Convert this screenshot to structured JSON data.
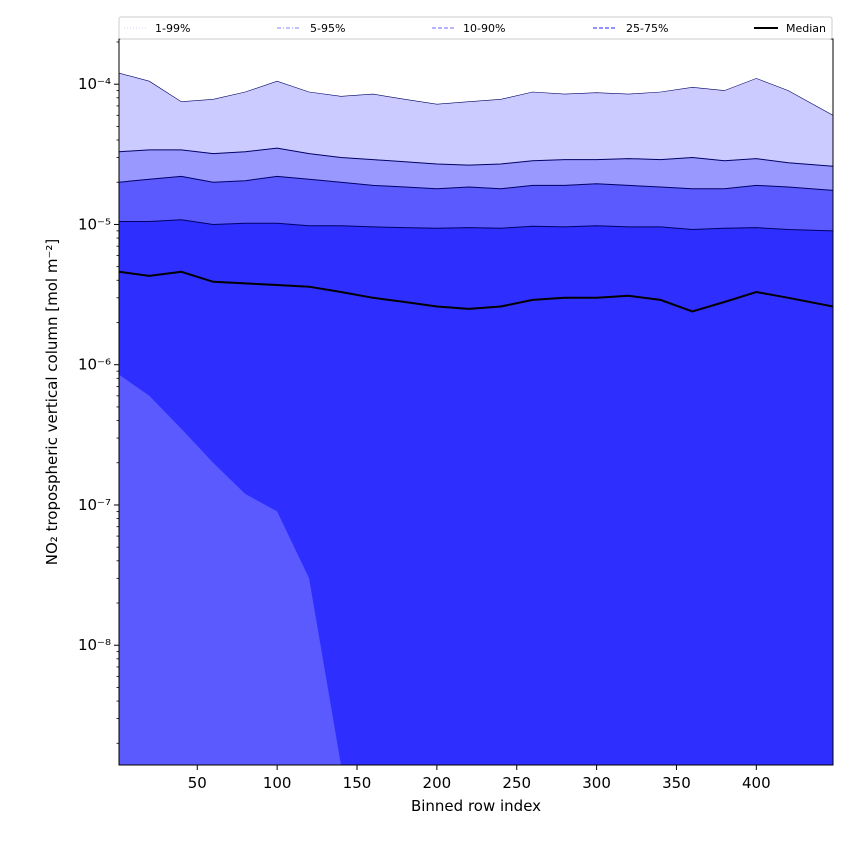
{
  "chart_data": {
    "type": "area",
    "title": "",
    "xlabel": "Binned row index",
    "ylabel": "NO₂ tropospheric vertical column [mol m⁻²]",
    "x_range": [
      1,
      448
    ],
    "x_scale": "linear",
    "y_scale": "log",
    "y_range": [
      1.4e-09,
      0.00021
    ],
    "grid": false,
    "legend_position": "top",
    "x_ticks": [
      50,
      100,
      150,
      200,
      250,
      300,
      350,
      400
    ],
    "x_tick_labels": [
      "50",
      "100",
      "150",
      "200",
      "250",
      "300",
      "350",
      "400"
    ],
    "y_ticks": [
      1e-08,
      1e-07,
      1e-06,
      1e-05,
      0.0001
    ],
    "y_tick_labels": [
      "10⁻⁸",
      "10⁻⁷",
      "10⁻⁶",
      "10⁻⁵",
      "10⁻⁴"
    ],
    "x": [
      1,
      20,
      40,
      60,
      80,
      100,
      120,
      140,
      160,
      180,
      200,
      220,
      240,
      260,
      280,
      300,
      320,
      340,
      360,
      380,
      400,
      420,
      448
    ],
    "series": [
      {
        "name": "Median",
        "values": [
          4.6e-06,
          4.3e-06,
          4.6e-06,
          3.9e-06,
          3.8e-06,
          3.7e-06,
          3.6e-06,
          3.3e-06,
          3e-06,
          2.8e-06,
          2.6e-06,
          2.5e-06,
          2.6e-06,
          2.9e-06,
          3e-06,
          3e-06,
          3.1e-06,
          2.9e-06,
          2.4e-06,
          2.8e-06,
          3.3e-06,
          3e-06,
          2.6e-06
        ]
      },
      {
        "name": "25-75%",
        "lower": [
          8.5e-07,
          6e-07,
          3.5e-07,
          2e-07,
          1.2e-07,
          9e-08,
          3e-08,
          1.4e-09,
          1.4e-09,
          1.4e-09,
          1.4e-09,
          1.4e-09,
          1.4e-09,
          1.4e-09,
          1.4e-09,
          1.4e-09,
          1.4e-09,
          1.4e-09,
          1.4e-09,
          1.4e-09,
          1.4e-09,
          1.4e-09,
          1.4e-09
        ],
        "upper": [
          1.05e-05,
          1.05e-05,
          1.08e-05,
          1e-05,
          1.02e-05,
          1.02e-05,
          9.8e-06,
          9.8e-06,
          9.6e-06,
          9.5e-06,
          9.4e-06,
          9.5e-06,
          9.4e-06,
          9.7e-06,
          9.6e-06,
          9.8e-06,
          9.6e-06,
          9.6e-06,
          9.2e-06,
          9.4e-06,
          9.5e-06,
          9.2e-06,
          9e-06
        ]
      },
      {
        "name": "10-90%",
        "lower": [
          1.4e-09,
          1.4e-09,
          1.4e-09,
          1.4e-09,
          1.4e-09,
          1.4e-09,
          1.4e-09,
          1.4e-09,
          1.4e-09,
          1.4e-09,
          1.4e-09,
          1.4e-09,
          1.4e-09,
          1.4e-09,
          1.4e-09,
          1.4e-09,
          1.4e-09,
          1.4e-09,
          1.4e-09,
          1.4e-09,
          1.4e-09,
          1.4e-09,
          1.4e-09
        ],
        "upper": [
          2e-05,
          2.1e-05,
          2.2e-05,
          2e-05,
          2.05e-05,
          2.2e-05,
          2.1e-05,
          2e-05,
          1.9e-05,
          1.85e-05,
          1.8e-05,
          1.85e-05,
          1.8e-05,
          1.9e-05,
          1.9e-05,
          1.95e-05,
          1.9e-05,
          1.85e-05,
          1.8e-05,
          1.8e-05,
          1.9e-05,
          1.85e-05,
          1.75e-05
        ]
      },
      {
        "name": "5-95%",
        "lower": [
          1.4e-09,
          1.4e-09,
          1.4e-09,
          1.4e-09,
          1.4e-09,
          1.4e-09,
          1.4e-09,
          1.4e-09,
          1.4e-09,
          1.4e-09,
          1.4e-09,
          1.4e-09,
          1.4e-09,
          1.4e-09,
          1.4e-09,
          1.4e-09,
          1.4e-09,
          1.4e-09,
          1.4e-09,
          1.4e-09,
          1.4e-09,
          1.4e-09,
          1.4e-09
        ],
        "upper": [
          3.3e-05,
          3.4e-05,
          3.4e-05,
          3.2e-05,
          3.3e-05,
          3.5e-05,
          3.2e-05,
          3e-05,
          2.9e-05,
          2.8e-05,
          2.7e-05,
          2.65e-05,
          2.7e-05,
          2.85e-05,
          2.9e-05,
          2.9e-05,
          2.95e-05,
          2.9e-05,
          3e-05,
          2.85e-05,
          2.95e-05,
          2.75e-05,
          2.6e-05
        ]
      },
      {
        "name": "1-99%",
        "lower": [
          1.4e-09,
          1.4e-09,
          1.4e-09,
          1.4e-09,
          1.4e-09,
          1.4e-09,
          1.4e-09,
          1.4e-09,
          1.4e-09,
          1.4e-09,
          1.4e-09,
          1.4e-09,
          1.4e-09,
          1.4e-09,
          1.4e-09,
          1.4e-09,
          1.4e-09,
          1.4e-09,
          1.4e-09,
          1.4e-09,
          1.4e-09,
          1.4e-09,
          1.4e-09
        ],
        "upper": [
          0.00012,
          0.000105,
          7.5e-05,
          7.8e-05,
          8.8e-05,
          0.000105,
          8.8e-05,
          8.2e-05,
          8.5e-05,
          7.8e-05,
          7.2e-05,
          7.5e-05,
          7.8e-05,
          8.8e-05,
          8.5e-05,
          8.7e-05,
          8.5e-05,
          8.8e-05,
          9.5e-05,
          9e-05,
          0.00011,
          9e-05,
          6e-05
        ]
      }
    ],
    "legend": [
      {
        "name": "1-99%",
        "style": "dotted",
        "color": "#d9d9ff"
      },
      {
        "name": "5-95%",
        "style": "dashdot",
        "color": "#9c9cff"
      },
      {
        "name": "10-90%",
        "style": "dashed",
        "color": "#8a8aff"
      },
      {
        "name": "25-75%",
        "style": "dashed",
        "color": "#5252ff"
      },
      {
        "name": "Median",
        "style": "solid",
        "color": "#000000"
      }
    ],
    "colors": {
      "band_1_99": "#cbcbff",
      "band_5_95": "#9898ff",
      "band_10_90": "#5a5aff",
      "band_25_75": "#2e2eff",
      "median": "#000000",
      "boundary": "#000066"
    }
  }
}
